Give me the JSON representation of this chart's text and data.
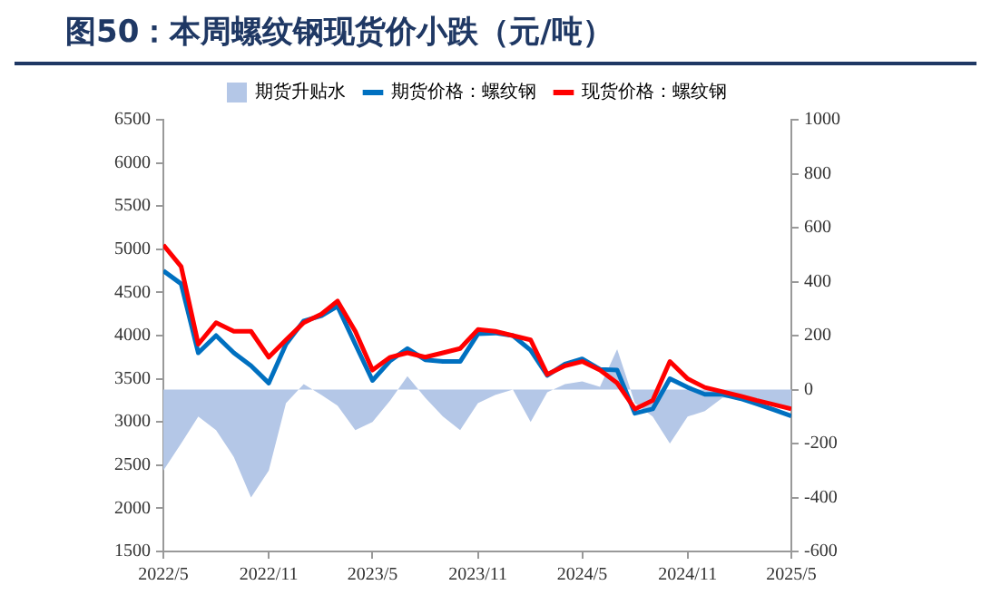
{
  "chart_data": {
    "type": "line",
    "title": "图50：本周螺纹钢现货价小跌（元/吨）",
    "x": [
      "2022-05",
      "2022-06",
      "2022-07",
      "2022-08",
      "2022-09",
      "2022-10",
      "2022-11",
      "2022-12",
      "2023-01",
      "2023-02",
      "2023-03",
      "2023-04",
      "2023-05",
      "2023-06",
      "2023-07",
      "2023-08",
      "2023-09",
      "2023-10",
      "2023-11",
      "2023-12",
      "2024-01",
      "2024-02",
      "2024-03",
      "2024-04",
      "2024-05",
      "2024-06",
      "2024-07",
      "2024-08",
      "2024-09",
      "2024-10",
      "2024-11",
      "2024-12",
      "2025-01",
      "2025-02",
      "2025-03",
      "2025-04",
      "2025-05"
    ],
    "series": [
      {
        "name": "期货升贴水",
        "type": "area",
        "axis": "y2",
        "color": "#b4c7e7",
        "values": [
          -300,
          -200,
          -100,
          -150,
          -250,
          -400,
          -300,
          -50,
          20,
          -20,
          -60,
          -150,
          -120,
          -40,
          50,
          -30,
          -100,
          -150,
          -50,
          -20,
          0,
          -120,
          -10,
          20,
          30,
          10,
          150,
          -50,
          -100,
          -200,
          -100,
          -80,
          -30,
          -30,
          -40,
          -60,
          -80
        ]
      },
      {
        "name": "期货价格：螺纹钢",
        "type": "line",
        "color": "#0070c0",
        "values": [
          4750,
          4600,
          3800,
          4000,
          3800,
          3650,
          3450,
          3900,
          4170,
          4230,
          4340,
          3900,
          3480,
          3710,
          3850,
          3720,
          3700,
          3700,
          4020,
          4030,
          4000,
          3830,
          3540,
          3670,
          3730,
          3610,
          3600,
          3100,
          3150,
          3500,
          3400,
          3320,
          3320,
          3270,
          3210,
          3140,
          3070
        ]
      },
      {
        "name": "现货价格：螺纹钢",
        "type": "line",
        "color": "#ff0000",
        "values": [
          5050,
          4800,
          3900,
          4150,
          4050,
          4050,
          3750,
          3950,
          4150,
          4250,
          4400,
          4050,
          3600,
          3750,
          3800,
          3750,
          3800,
          3850,
          4070,
          4050,
          4000,
          3950,
          3550,
          3650,
          3700,
          3600,
          3450,
          3150,
          3250,
          3700,
          3500,
          3400,
          3350,
          3300,
          3250,
          3200,
          3150
        ]
      }
    ],
    "xlim": [
      "2022-05",
      "2025-05"
    ],
    "xticks": [
      {
        "value": "2022-05",
        "label": "2022/5"
      },
      {
        "value": "2022-11",
        "label": "2022/11"
      },
      {
        "value": "2023-05",
        "label": "2023/5"
      },
      {
        "value": "2023-11",
        "label": "2023/11"
      },
      {
        "value": "2024-05",
        "label": "2024/5"
      },
      {
        "value": "2024-11",
        "label": "2024/11"
      },
      {
        "value": "2025-05",
        "label": "2025/5"
      }
    ],
    "ylim": [
      1500,
      6500
    ],
    "yticks": [
      1500,
      2000,
      2500,
      3000,
      3500,
      4000,
      4500,
      5000,
      5500,
      6000,
      6500
    ],
    "y2lim": [
      -600,
      1000
    ],
    "y2ticks": [
      -600,
      -400,
      -200,
      0,
      200,
      400,
      600,
      800,
      1000
    ],
    "legend": "top",
    "grid": false,
    "marker": "none",
    "line_style": "solid"
  }
}
